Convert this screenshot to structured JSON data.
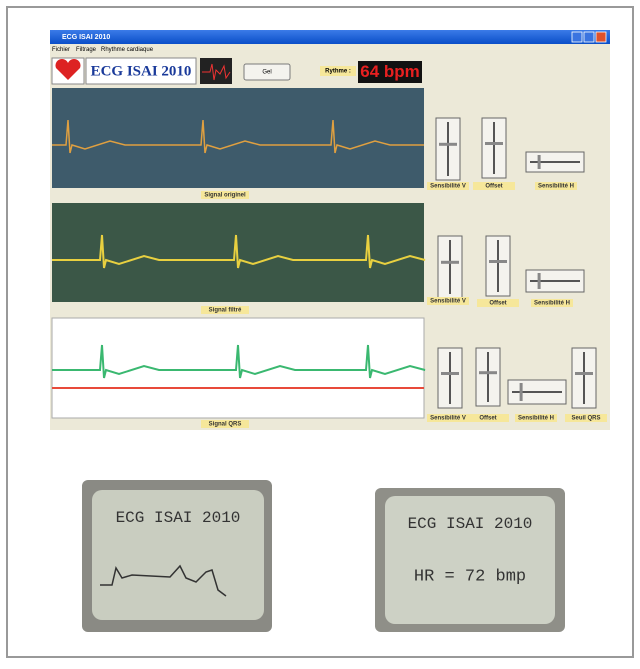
{
  "window": {
    "title": "ECG ISAI 2010",
    "menu": [
      "Fichier",
      "Filtrage",
      "Rhythme cardiaque"
    ]
  },
  "toolbar": {
    "logo_text": "ECG ISAI 2010",
    "button": "Gel",
    "rate_label": "Rythme :",
    "rate_value": "64 bpm"
  },
  "panels": [
    {
      "label": "Signal originel",
      "controls": [
        "Sensibilité V",
        "Offset",
        "Sensibilité H"
      ]
    },
    {
      "label": "Signal filtré",
      "controls": [
        "Sensibilité V",
        "Offset",
        "Sensibilité H"
      ]
    },
    {
      "label": "Signal QRS",
      "controls": [
        "Sensibilité V",
        "Offset",
        "Sensibilité H",
        "Seuil QRS"
      ]
    }
  ],
  "lcd": [
    {
      "lines": [
        "ECG ISAI 2010"
      ]
    },
    {
      "lines": [
        "ECG ISAI 2010",
        "HR =  72 bmp"
      ]
    }
  ]
}
